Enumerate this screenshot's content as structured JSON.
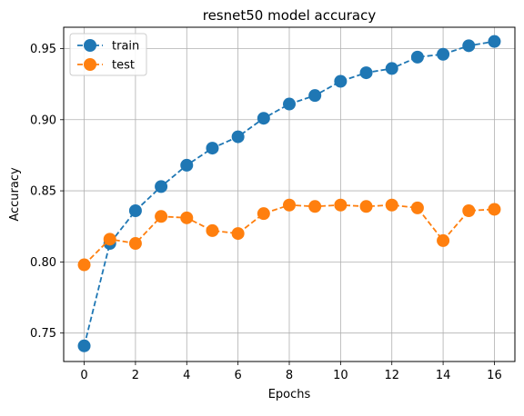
{
  "chart_data": {
    "type": "line",
    "title": "resnet50 model accuracy",
    "xlabel": "Epochs",
    "ylabel": "Accuracy",
    "x": [
      0,
      1,
      2,
      3,
      4,
      5,
      6,
      7,
      8,
      9,
      10,
      11,
      12,
      13,
      14,
      15,
      16
    ],
    "xlim": [
      -0.8,
      16.8
    ],
    "ylim": [
      0.73,
      0.965
    ],
    "xticks": [
      0,
      2,
      4,
      6,
      8,
      10,
      12,
      14,
      16
    ],
    "xtick_labels": [
      "0",
      "2",
      "4",
      "6",
      "8",
      "10",
      "12",
      "14",
      "16"
    ],
    "yticks": [
      0.75,
      0.8,
      0.85,
      0.9,
      0.95
    ],
    "ytick_labels": [
      "0.75",
      "0.80",
      "0.85",
      "0.90",
      "0.95"
    ],
    "grid": true,
    "legend_position": "top-left",
    "line_style": "dashed",
    "marker": "circle",
    "series": [
      {
        "name": "train",
        "color": "#1f77b4",
        "values": [
          0.741,
          0.813,
          0.836,
          0.853,
          0.868,
          0.88,
          0.888,
          0.901,
          0.911,
          0.917,
          0.927,
          0.933,
          0.936,
          0.944,
          0.946,
          0.952,
          0.955
        ]
      },
      {
        "name": "test",
        "color": "#ff7f0e",
        "values": [
          0.798,
          0.816,
          0.813,
          0.832,
          0.831,
          0.822,
          0.82,
          0.834,
          0.84,
          0.839,
          0.84,
          0.839,
          0.84,
          0.838,
          0.815,
          0.836,
          0.837
        ]
      }
    ]
  }
}
